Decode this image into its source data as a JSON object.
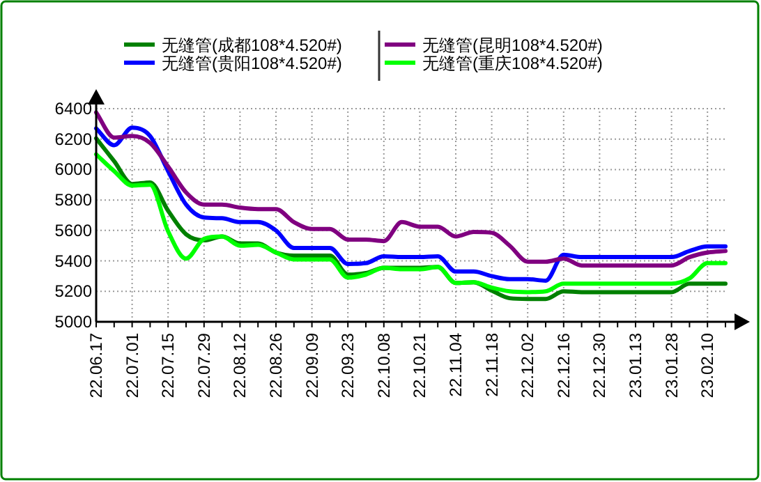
{
  "chart_data": {
    "type": "line",
    "categories": [
      "22.06.17",
      null,
      "22.07.01",
      null,
      "22.07.15",
      null,
      "22.07.29",
      null,
      "22.08.12",
      null,
      "22.08.26",
      null,
      "22.09.09",
      null,
      "22.09.23",
      null,
      "22.10.08",
      null,
      "22.10.21",
      null,
      "22.11.04",
      null,
      "22.11.18",
      null,
      "22.12.02",
      null,
      "22.12.16",
      null,
      "22.12.30",
      null,
      "23.01.13",
      null,
      "23.01.28",
      null,
      "23.02.10",
      null
    ],
    "series": [
      {
        "name": "无缝管(成都108*4.520#)",
        "color": "#008000",
        "values": [
          6205,
          6055,
          5905,
          5915,
          5730,
          5575,
          5535,
          5560,
          5515,
          5515,
          5455,
          5435,
          5435,
          5435,
          5310,
          5320,
          5355,
          5355,
          5355,
          5360,
          5255,
          5260,
          5205,
          5155,
          5150,
          5150,
          5200,
          5195,
          5195,
          5195,
          5195,
          5195,
          5195,
          5250,
          5250,
          5250
        ]
      },
      {
        "name": "无缝管(贵阳108*4.520#)",
        "color": "#0000ff",
        "values": [
          6270,
          6160,
          6275,
          6220,
          5990,
          5770,
          5685,
          5680,
          5655,
          5655,
          5600,
          5485,
          5485,
          5485,
          5380,
          5385,
          5430,
          5425,
          5425,
          5430,
          5330,
          5330,
          5300,
          5280,
          5280,
          5270,
          5440,
          5425,
          5425,
          5425,
          5425,
          5425,
          5425,
          5465,
          5495,
          5495
        ]
      },
      {
        "name": "无缝管(昆明108*4.520#)",
        "color": "#800080",
        "values": [
          6375,
          6210,
          6220,
          6175,
          6020,
          5850,
          5770,
          5770,
          5750,
          5740,
          5740,
          5655,
          5610,
          5610,
          5540,
          5540,
          5530,
          5655,
          5625,
          5625,
          5560,
          5590,
          5585,
          5500,
          5395,
          5395,
          5415,
          5370,
          5370,
          5370,
          5370,
          5370,
          5370,
          5425,
          5455,
          5465
        ]
      },
      {
        "name": "无缝管(重庆108*4.520#)",
        "color": "#00ff00",
        "values": [
          6100,
          5990,
          5895,
          5900,
          5595,
          5415,
          5545,
          5560,
          5500,
          5505,
          5455,
          5410,
          5410,
          5410,
          5290,
          5310,
          5355,
          5345,
          5345,
          5360,
          5255,
          5260,
          5225,
          5200,
          5195,
          5200,
          5250,
          5250,
          5250,
          5250,
          5250,
          5250,
          5250,
          5285,
          5385,
          5385
        ]
      }
    ],
    "ylim": [
      5000,
      6400
    ],
    "yticks": [
      5000,
      5200,
      5400,
      5600,
      5800,
      6000,
      6200,
      6400
    ],
    "grid": true,
    "legend": "top",
    "line_style": "solid",
    "marker": "none"
  }
}
